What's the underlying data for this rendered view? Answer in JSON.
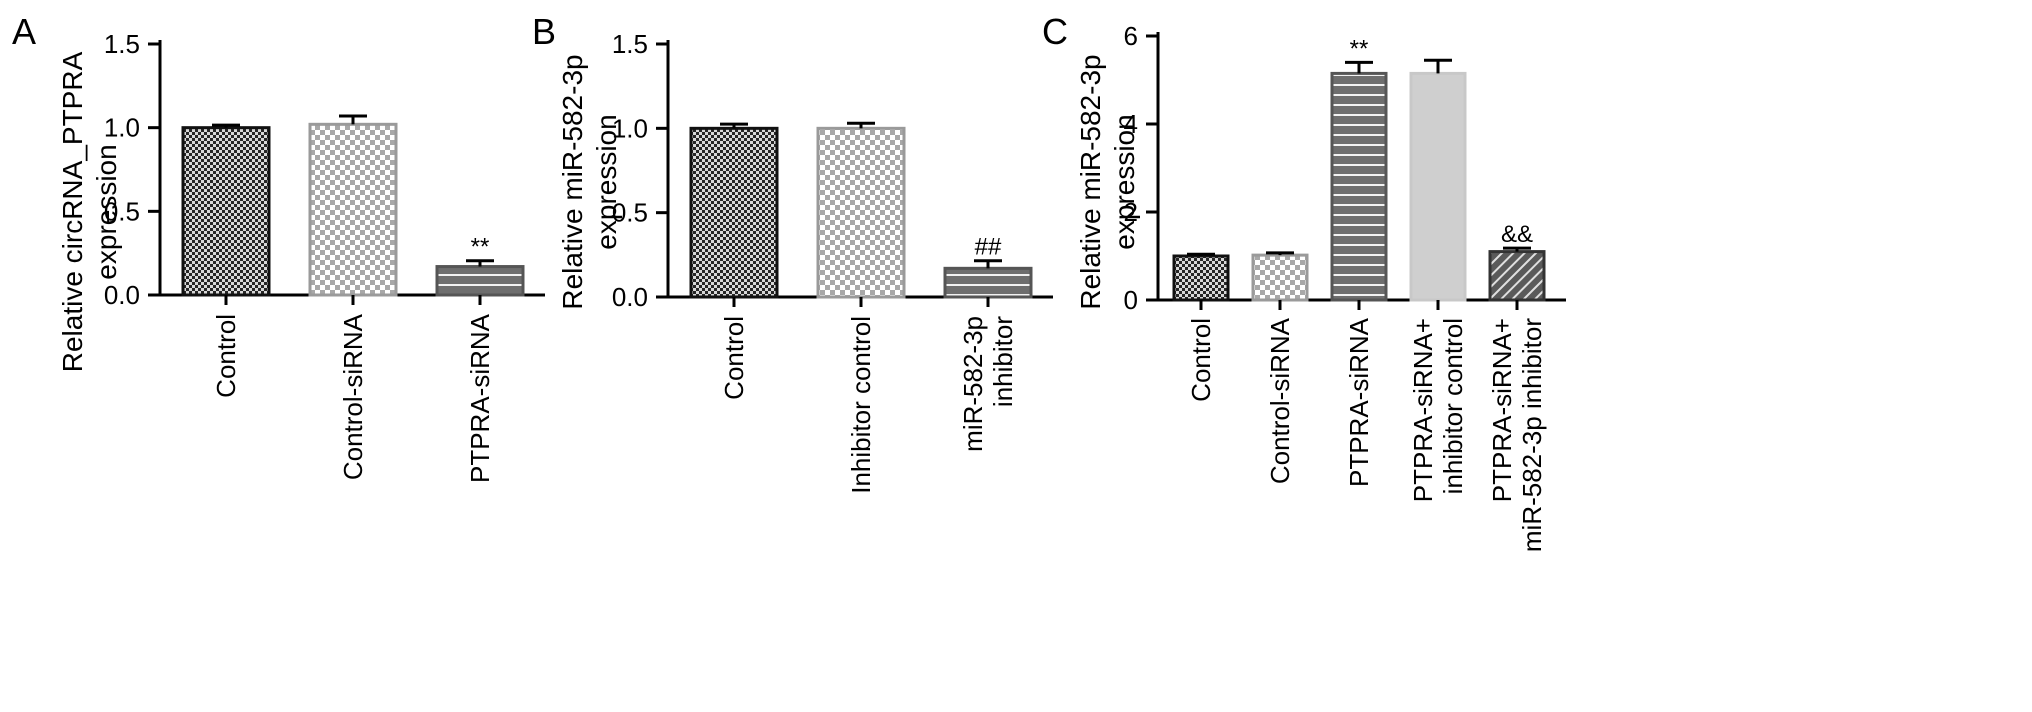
{
  "chart_data": [
    {
      "type": "bar",
      "panel_letter": "A",
      "ylabel_lines": [
        "Relative circRNA_PTPRA",
        "expression"
      ],
      "ylim": [
        0,
        1.5
      ],
      "yticks": [
        "0.0",
        "0.5",
        "1.0",
        "1.5"
      ],
      "categories": [
        [
          "Control"
        ],
        [
          "Control-siRNA"
        ],
        [
          "PTPRA-siRNA"
        ]
      ],
      "values": [
        1.0,
        1.02,
        0.17
      ],
      "errors": [
        0.015,
        0.05,
        0.035
      ],
      "significance": [
        "",
        "",
        "**"
      ],
      "fills": [
        "dense-check",
        "light-check",
        "gray-lines"
      ],
      "grid": false
    },
    {
      "type": "bar",
      "panel_letter": "B",
      "ylabel_lines": [
        "Relative miR-582-3p",
        "expression"
      ],
      "ylim": [
        0,
        1.5
      ],
      "yticks": [
        "0.0",
        "0.5",
        "1.0",
        "1.5"
      ],
      "categories": [
        [
          "Control"
        ],
        [
          "Inhibitor control"
        ],
        [
          "miR-582-3p",
          "inhibitor"
        ]
      ],
      "values": [
        1.0,
        1.0,
        0.17
      ],
      "errors": [
        0.025,
        0.03,
        0.045
      ],
      "significance": [
        "",
        "",
        "##"
      ],
      "fills": [
        "dense-check",
        "light-check",
        "gray-lines"
      ],
      "grid": false
    },
    {
      "type": "bar",
      "panel_letter": "C",
      "ylabel_lines": [
        "Relative miR-582-3p",
        "expression"
      ],
      "ylim": [
        0,
        6
      ],
      "yticks": [
        "0",
        "2",
        "4",
        "6"
      ],
      "categories": [
        [
          "Control"
        ],
        [
          "Control-siRNA"
        ],
        [
          "PTPRA-siRNA"
        ],
        [
          "PTPRA-siRNA+",
          "inhibitor control"
        ],
        [
          "PTPRA-siRNA+",
          "miR-582-3p inhibitor"
        ]
      ],
      "values": [
        1.0,
        1.02,
        5.15,
        5.15,
        1.1
      ],
      "errors": [
        0.04,
        0.05,
        0.25,
        0.3,
        0.08
      ],
      "significance": [
        "",
        "",
        "**",
        "",
        "&&"
      ],
      "fills": [
        "dense-check",
        "light-check",
        "gray-lines",
        "solid-light",
        "diagonal"
      ],
      "grid": false
    }
  ],
  "colors": {
    "axis": "#000000",
    "bar_dark": "#3a3a3a",
    "bar_light_outline": "#a0a0a0",
    "bar_gray": "#6e6e6e",
    "bar_solid_light": "#cfcfcf",
    "stripe": "#ffffff"
  }
}
